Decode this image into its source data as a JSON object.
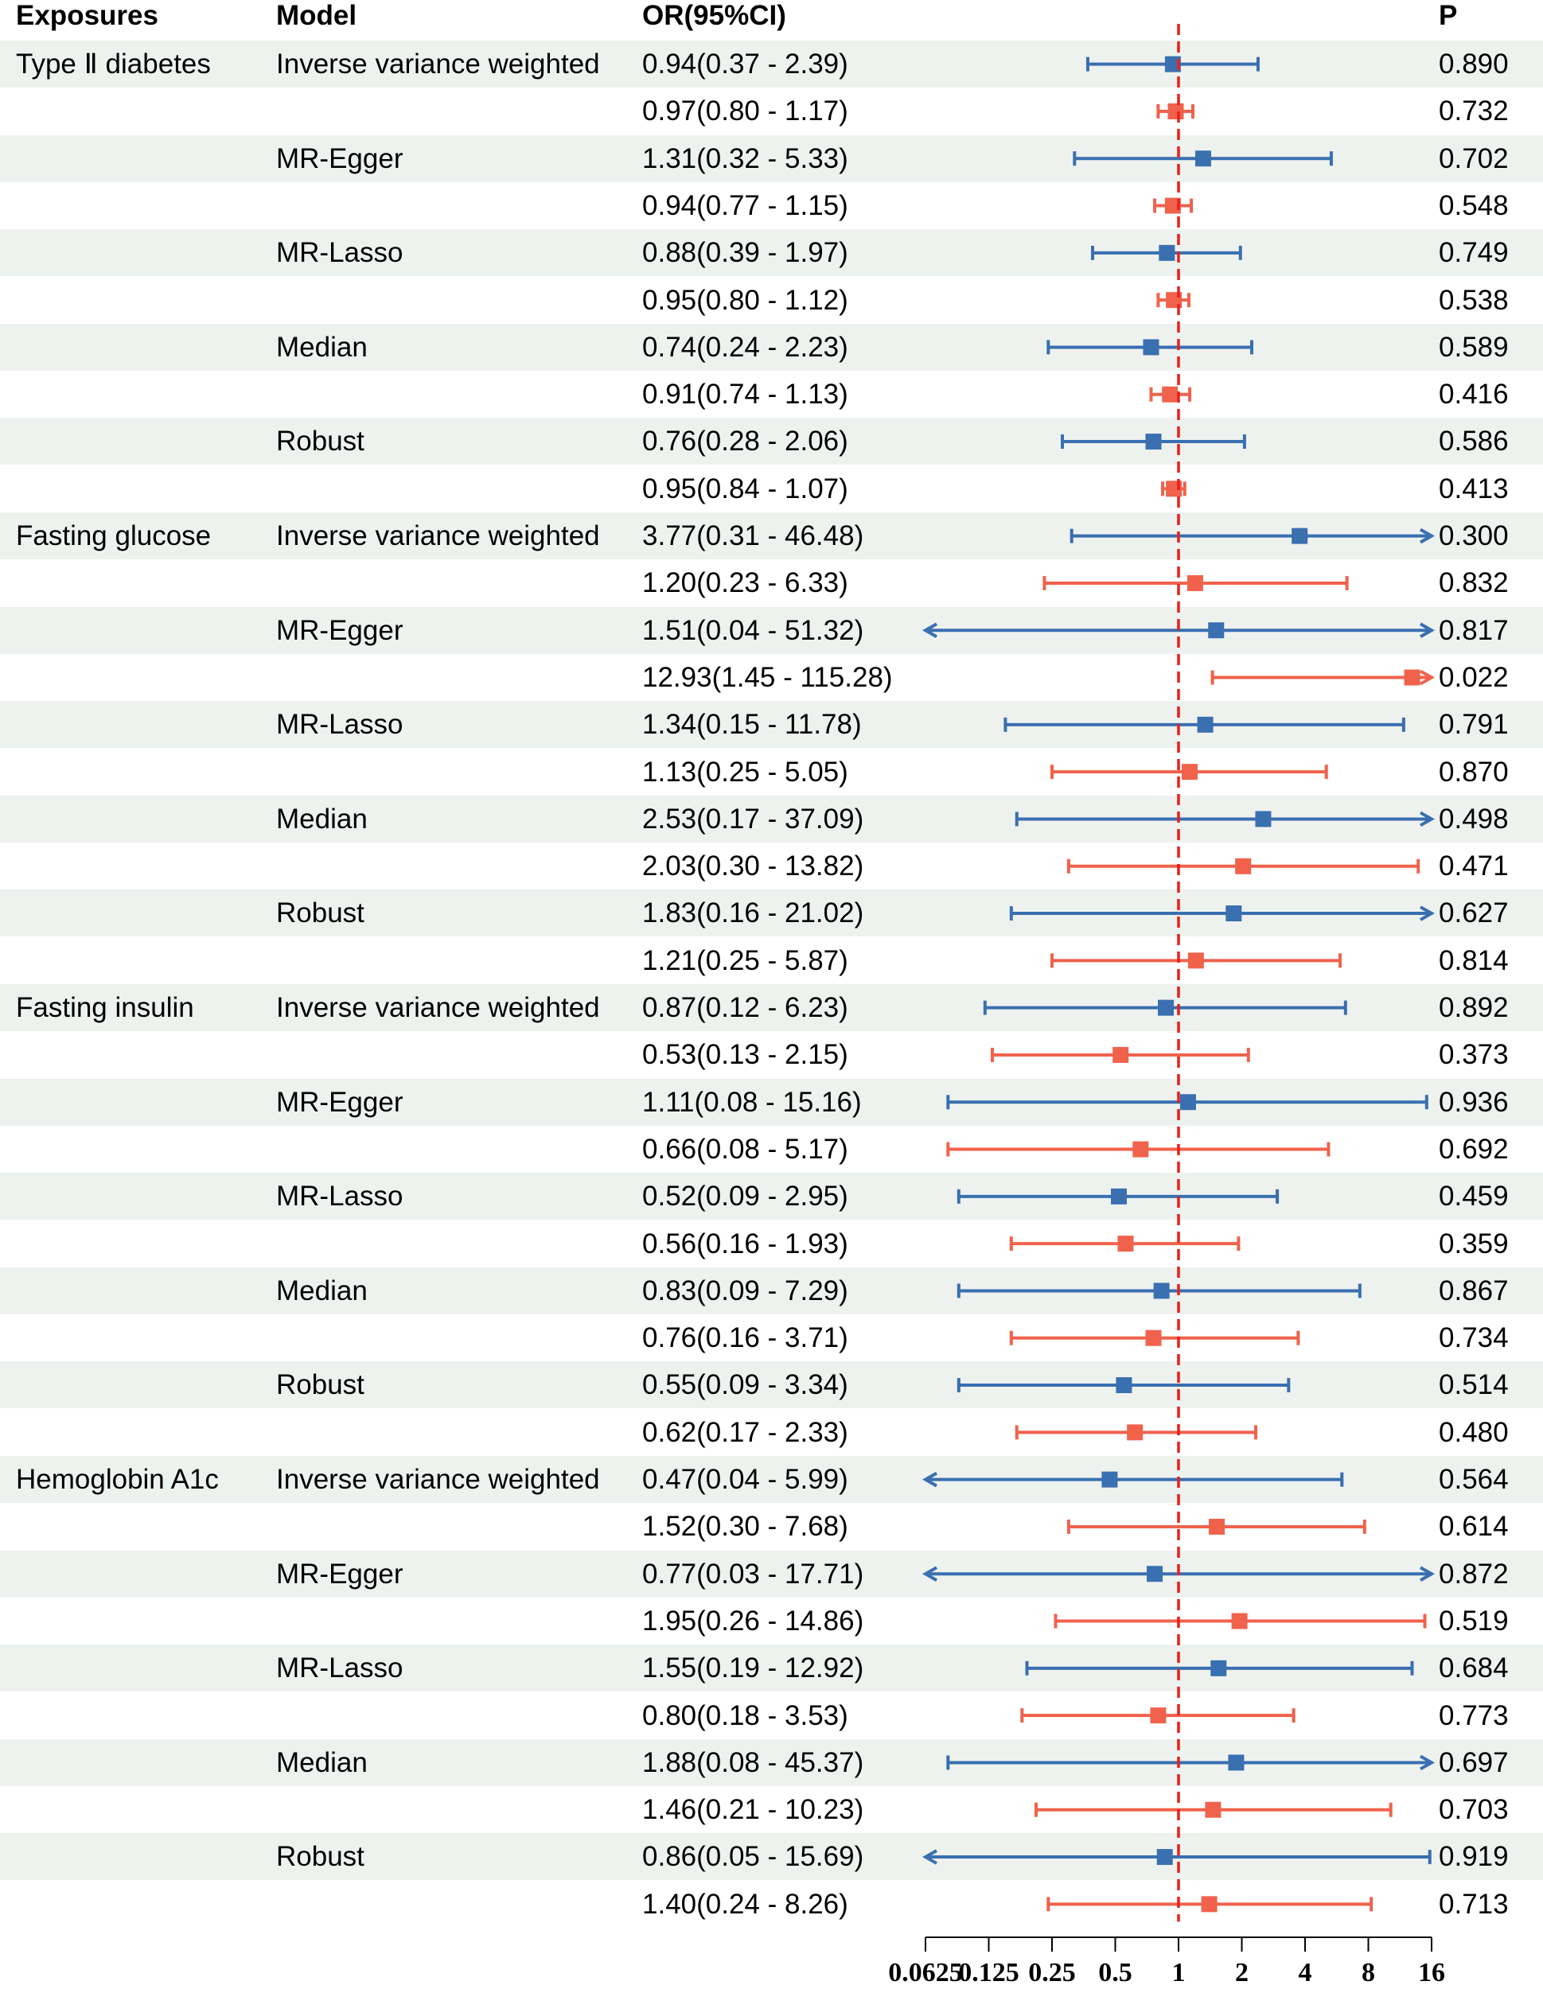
{
  "headers": {
    "exposures": "Exposures",
    "model": "Model",
    "or": "OR(95%CI)",
    "p": "P"
  },
  "colors": {
    "series_blue": "#3a6fb0",
    "series_red": "#f0624c",
    "reference_line": "#e8201c",
    "row_shading": "#eef2ef",
    "axis": "#000000"
  },
  "chart_data": {
    "type": "forest",
    "xscale": "log2",
    "xlim": [
      0.0625,
      16
    ],
    "reference_value": 1,
    "tick_values": [
      0.0625,
      0.125,
      0.25,
      0.5,
      1,
      2,
      4,
      8,
      16
    ],
    "tick_labels": [
      "0.0625",
      "0.125",
      "0.25",
      "0.5",
      "1",
      "2",
      "4",
      "8",
      "16"
    ],
    "rows": [
      {
        "exposure": "Type Ⅱ diabetes",
        "model": "Inverse variance weighted",
        "series": "blue",
        "or": 0.94,
        "lo": 0.37,
        "hi": 2.39,
        "or_text": "0.94(0.37 - 2.39)",
        "p": "0.890"
      },
      {
        "exposure": "",
        "model": "",
        "series": "red",
        "or": 0.97,
        "lo": 0.8,
        "hi": 1.17,
        "or_text": "0.97(0.80 - 1.17)",
        "p": "0.732"
      },
      {
        "exposure": "",
        "model": "MR-Egger",
        "series": "blue",
        "or": 1.31,
        "lo": 0.32,
        "hi": 5.33,
        "or_text": "1.31(0.32 - 5.33)",
        "p": "0.702"
      },
      {
        "exposure": "",
        "model": "",
        "series": "red",
        "or": 0.94,
        "lo": 0.77,
        "hi": 1.15,
        "or_text": "0.94(0.77 - 1.15)",
        "p": "0.548"
      },
      {
        "exposure": "",
        "model": "MR-Lasso",
        "series": "blue",
        "or": 0.88,
        "lo": 0.39,
        "hi": 1.97,
        "or_text": "0.88(0.39 - 1.97)",
        "p": "0.749"
      },
      {
        "exposure": "",
        "model": "",
        "series": "red",
        "or": 0.95,
        "lo": 0.8,
        "hi": 1.12,
        "or_text": "0.95(0.80 - 1.12)",
        "p": "0.538"
      },
      {
        "exposure": "",
        "model": "Median",
        "series": "blue",
        "or": 0.74,
        "lo": 0.24,
        "hi": 2.23,
        "or_text": "0.74(0.24 - 2.23)",
        "p": "0.589"
      },
      {
        "exposure": "",
        "model": "",
        "series": "red",
        "or": 0.91,
        "lo": 0.74,
        "hi": 1.13,
        "or_text": "0.91(0.74 - 1.13)",
        "p": "0.416"
      },
      {
        "exposure": "",
        "model": "Robust",
        "series": "blue",
        "or": 0.76,
        "lo": 0.28,
        "hi": 2.06,
        "or_text": "0.76(0.28 - 2.06)",
        "p": "0.586"
      },
      {
        "exposure": "",
        "model": "",
        "series": "red",
        "or": 0.95,
        "lo": 0.84,
        "hi": 1.07,
        "or_text": "0.95(0.84 - 1.07)",
        "p": "0.413"
      },
      {
        "exposure": "Fasting glucose",
        "model": "Inverse variance weighted",
        "series": "blue",
        "or": 3.77,
        "lo": 0.31,
        "hi": 46.48,
        "or_text": "3.77(0.31 - 46.48)",
        "p": "0.300"
      },
      {
        "exposure": "",
        "model": "",
        "series": "red",
        "or": 1.2,
        "lo": 0.23,
        "hi": 6.33,
        "or_text": "1.20(0.23 - 6.33)",
        "p": "0.832"
      },
      {
        "exposure": "",
        "model": "MR-Egger",
        "series": "blue",
        "or": 1.51,
        "lo": 0.04,
        "hi": 51.32,
        "or_text": "1.51(0.04 - 51.32)",
        "p": "0.817"
      },
      {
        "exposure": "",
        "model": "",
        "series": "red",
        "or": 12.93,
        "lo": 1.45,
        "hi": 115.28,
        "or_text": "12.93(1.45 - 115.28)",
        "p": "0.022"
      },
      {
        "exposure": "",
        "model": "MR-Lasso",
        "series": "blue",
        "or": 1.34,
        "lo": 0.15,
        "hi": 11.78,
        "or_text": "1.34(0.15 - 11.78)",
        "p": "0.791"
      },
      {
        "exposure": "",
        "model": "",
        "series": "red",
        "or": 1.13,
        "lo": 0.25,
        "hi": 5.05,
        "or_text": "1.13(0.25 - 5.05)",
        "p": "0.870"
      },
      {
        "exposure": "",
        "model": "Median",
        "series": "blue",
        "or": 2.53,
        "lo": 0.17,
        "hi": 37.09,
        "or_text": "2.53(0.17 - 37.09)",
        "p": "0.498"
      },
      {
        "exposure": "",
        "model": "",
        "series": "red",
        "or": 2.03,
        "lo": 0.3,
        "hi": 13.82,
        "or_text": "2.03(0.30 - 13.82)",
        "p": "0.471"
      },
      {
        "exposure": "",
        "model": "Robust",
        "series": "blue",
        "or": 1.83,
        "lo": 0.16,
        "hi": 21.02,
        "or_text": "1.83(0.16 - 21.02)",
        "p": "0.627"
      },
      {
        "exposure": "",
        "model": "",
        "series": "red",
        "or": 1.21,
        "lo": 0.25,
        "hi": 5.87,
        "or_text": "1.21(0.25 - 5.87)",
        "p": "0.814"
      },
      {
        "exposure": "Fasting insulin",
        "model": "Inverse variance weighted",
        "series": "blue",
        "or": 0.87,
        "lo": 0.12,
        "hi": 6.23,
        "or_text": "0.87(0.12 - 6.23)",
        "p": "0.892"
      },
      {
        "exposure": "",
        "model": "",
        "series": "red",
        "or": 0.53,
        "lo": 0.13,
        "hi": 2.15,
        "or_text": "0.53(0.13 - 2.15)",
        "p": "0.373"
      },
      {
        "exposure": "",
        "model": "MR-Egger",
        "series": "blue",
        "or": 1.11,
        "lo": 0.08,
        "hi": 15.16,
        "or_text": "1.11(0.08 - 15.16)",
        "p": "0.936"
      },
      {
        "exposure": "",
        "model": "",
        "series": "red",
        "or": 0.66,
        "lo": 0.08,
        "hi": 5.17,
        "or_text": "0.66(0.08 - 5.17)",
        "p": "0.692"
      },
      {
        "exposure": "",
        "model": "MR-Lasso",
        "series": "blue",
        "or": 0.52,
        "lo": 0.09,
        "hi": 2.95,
        "or_text": "0.52(0.09 - 2.95)",
        "p": "0.459"
      },
      {
        "exposure": "",
        "model": "",
        "series": "red",
        "or": 0.56,
        "lo": 0.16,
        "hi": 1.93,
        "or_text": "0.56(0.16 - 1.93)",
        "p": "0.359"
      },
      {
        "exposure": "",
        "model": "Median",
        "series": "blue",
        "or": 0.83,
        "lo": 0.09,
        "hi": 7.29,
        "or_text": "0.83(0.09 - 7.29)",
        "p": "0.867"
      },
      {
        "exposure": "",
        "model": "",
        "series": "red",
        "or": 0.76,
        "lo": 0.16,
        "hi": 3.71,
        "or_text": "0.76(0.16 - 3.71)",
        "p": "0.734"
      },
      {
        "exposure": "",
        "model": "Robust",
        "series": "blue",
        "or": 0.55,
        "lo": 0.09,
        "hi": 3.34,
        "or_text": "0.55(0.09 - 3.34)",
        "p": "0.514"
      },
      {
        "exposure": "",
        "model": "",
        "series": "red",
        "or": 0.62,
        "lo": 0.17,
        "hi": 2.33,
        "or_text": "0.62(0.17 - 2.33)",
        "p": "0.480"
      },
      {
        "exposure": "Hemoglobin A1c",
        "model": "Inverse variance weighted",
        "series": "blue",
        "or": 0.47,
        "lo": 0.04,
        "hi": 5.99,
        "or_text": "0.47(0.04 - 5.99)",
        "p": "0.564"
      },
      {
        "exposure": "",
        "model": "",
        "series": "red",
        "or": 1.52,
        "lo": 0.3,
        "hi": 7.68,
        "or_text": "1.52(0.30 - 7.68)",
        "p": "0.614"
      },
      {
        "exposure": "",
        "model": "MR-Egger",
        "series": "blue",
        "or": 0.77,
        "lo": 0.03,
        "hi": 17.71,
        "or_text": "0.77(0.03 - 17.71)",
        "p": "0.872"
      },
      {
        "exposure": "",
        "model": "",
        "series": "red",
        "or": 1.95,
        "lo": 0.26,
        "hi": 14.86,
        "or_text": "1.95(0.26 - 14.86)",
        "p": "0.519"
      },
      {
        "exposure": "",
        "model": "MR-Lasso",
        "series": "blue",
        "or": 1.55,
        "lo": 0.19,
        "hi": 12.92,
        "or_text": "1.55(0.19 - 12.92)",
        "p": "0.684"
      },
      {
        "exposure": "",
        "model": "",
        "series": "red",
        "or": 0.8,
        "lo": 0.18,
        "hi": 3.53,
        "or_text": "0.80(0.18 - 3.53)",
        "p": "0.773"
      },
      {
        "exposure": "",
        "model": "Median",
        "series": "blue",
        "or": 1.88,
        "lo": 0.08,
        "hi": 45.37,
        "or_text": "1.88(0.08 - 45.37)",
        "p": "0.697"
      },
      {
        "exposure": "",
        "model": "",
        "series": "red",
        "or": 1.46,
        "lo": 0.21,
        "hi": 10.23,
        "or_text": "1.46(0.21 - 10.23)",
        "p": "0.703"
      },
      {
        "exposure": "",
        "model": "Robust",
        "series": "blue",
        "or": 0.86,
        "lo": 0.05,
        "hi": 15.69,
        "or_text": "0.86(0.05 - 15.69)",
        "p": "0.919"
      },
      {
        "exposure": "",
        "model": "",
        "series": "red",
        "or": 1.4,
        "lo": 0.24,
        "hi": 8.26,
        "or_text": "1.40(0.24 - 8.26)",
        "p": "0.713"
      }
    ]
  }
}
